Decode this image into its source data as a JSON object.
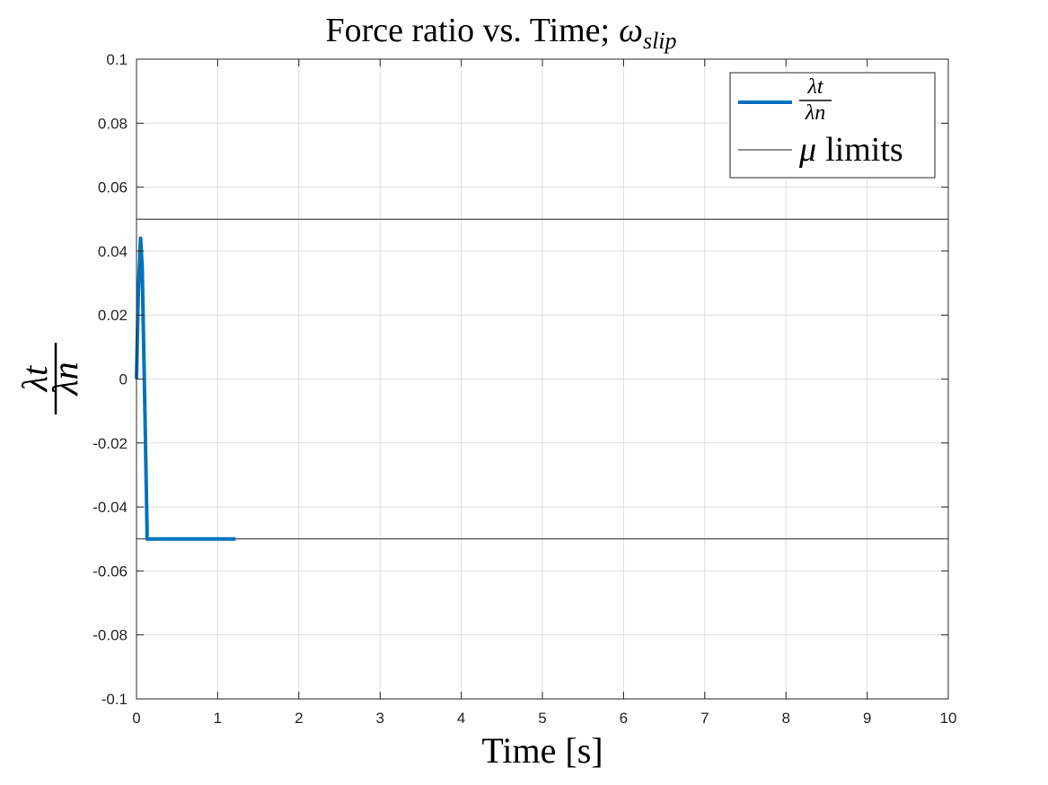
{
  "chart_data": {
    "type": "line",
    "title": "Force ratio vs. Time; ωslip",
    "title_main": "Force ratio vs. Time;",
    "title_symbol": "ω",
    "title_subscript": "slip",
    "xlabel": "Time [s]",
    "ylabel_numerator": "λt",
    "ylabel_denominator": "λn",
    "xlim": [
      0,
      10
    ],
    "ylim": [
      -0.1,
      0.1
    ],
    "x_ticks": [
      0,
      1,
      2,
      3,
      4,
      5,
      6,
      7,
      8,
      9,
      10
    ],
    "x_tick_labels": [
      "0",
      "1",
      "2",
      "3",
      "4",
      "5",
      "6",
      "7",
      "8",
      "9",
      "10"
    ],
    "y_ticks": [
      0.1,
      0.08,
      0.06,
      0.04,
      0.02,
      0,
      -0.02,
      -0.04,
      -0.06,
      -0.08,
      -0.1
    ],
    "y_tick_labels": [
      "0.1",
      "0.08",
      "0.06",
      "0.04",
      "0.02",
      "0",
      "-0.02",
      "-0.04",
      "-0.06",
      "-0.08",
      "-0.1"
    ],
    "grid": true,
    "legend_position": "top-right",
    "series": [
      {
        "name": "λt/λn",
        "color": "#0072BD",
        "x": [
          0,
          0.02,
          0.05,
          0.07,
          0.1,
          0.13,
          0.13,
          1.22
        ],
        "y": [
          0,
          0.025,
          0.044,
          0.035,
          -0.005,
          -0.047,
          -0.05,
          -0.05
        ]
      },
      {
        "name": "μ limits",
        "color": "#262626",
        "segments": [
          {
            "x": [
              0,
              10
            ],
            "y": [
              0.05,
              0.05
            ]
          },
          {
            "x": [
              0,
              10
            ],
            "y": [
              -0.05,
              -0.05
            ]
          }
        ]
      }
    ],
    "legend": {
      "series_numerator": "λt",
      "series_denominator": "λn",
      "limits_symbol": "μ",
      "limits_text": "limits"
    }
  }
}
